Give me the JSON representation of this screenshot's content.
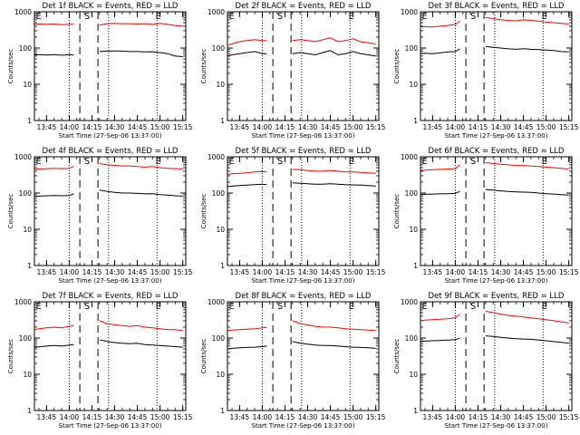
{
  "chart_data": [
    {
      "type": "line",
      "title": "Det 1f BLACK = Events, RED = LLD",
      "xlabel": "Start Time (27-Sep-06 13:37:00)",
      "ylabel": "Counts/sec",
      "yscale": "log",
      "ylim": [
        1,
        1000
      ],
      "x_ticklabels": [
        "13:45",
        "14:00",
        "14:15",
        "14:30",
        "14:45",
        "15:00",
        "15:15"
      ],
      "y_ticklabels": [
        "1",
        "10",
        "100",
        "1000"
      ],
      "markers": [
        "E",
        "S",
        "E"
      ],
      "x": [
        "13:37",
        "13:40",
        "13:45",
        "13:50",
        "13:55",
        "14:00",
        "14:03",
        "14:05",
        "14:10",
        "14:12",
        "14:20",
        "14:25",
        "14:30",
        "14:35",
        "14:40",
        "14:45",
        "14:50",
        "14:55",
        "15:00",
        "15:05",
        "15:10",
        "15:15"
      ],
      "series": [
        {
          "name": "RED = LLD",
          "color": "#ff0000",
          "values": [
            450,
            460,
            450,
            460,
            440,
            450,
            455,
            null,
            null,
            null,
            430,
            470,
            480,
            470,
            470,
            460,
            470,
            450,
            480,
            450,
            420,
            400
          ]
        },
        {
          "name": "BLACK = Events",
          "color": "#000000",
          "values": [
            65,
            66,
            64,
            66,
            63,
            66,
            64,
            null,
            null,
            null,
            80,
            82,
            83,
            82,
            80,
            80,
            78,
            79,
            75,
            70,
            60,
            58
          ]
        }
      ]
    },
    {
      "type": "line",
      "title": "Det 2f BLACK = Events, RED = LLD",
      "xlabel": "Start Time (27-Sep-06 13:37:00)",
      "ylabel": "Counts/sec",
      "yscale": "log",
      "ylim": [
        1,
        1000
      ],
      "x_ticklabels": [
        "13:45",
        "14:00",
        "14:15",
        "14:30",
        "14:45",
        "15:00",
        "15:15"
      ],
      "y_ticklabels": [
        "1",
        "10",
        "100",
        "1000"
      ],
      "markers": [
        "E",
        "S",
        "E"
      ],
      "x": [
        "13:37",
        "13:40",
        "13:45",
        "13:50",
        "13:55",
        "14:00",
        "14:03",
        "14:05",
        "14:10",
        "14:12",
        "14:20",
        "14:25",
        "14:30",
        "14:35",
        "14:40",
        "14:45",
        "14:50",
        "14:55",
        "15:00",
        "15:05",
        "15:10",
        "15:15"
      ],
      "series": [
        {
          "name": "RED = LLD",
          "color": "#ff0000",
          "values": [
            120,
            130,
            150,
            160,
            170,
            160,
            160,
            null,
            null,
            null,
            160,
            170,
            160,
            150,
            170,
            190,
            150,
            160,
            180,
            150,
            140,
            130
          ]
        },
        {
          "name": "BLACK = Events",
          "color": "#000000",
          "values": [
            60,
            65,
            70,
            75,
            80,
            70,
            70,
            null,
            null,
            null,
            70,
            75,
            70,
            65,
            75,
            85,
            65,
            70,
            80,
            70,
            65,
            60
          ]
        }
      ]
    },
    {
      "type": "line",
      "title": "Det 3f BLACK = Events, RED = LLD",
      "xlabel": "Start Time (27-Sep-06 13:37:00)",
      "ylabel": "Counts/sec",
      "yscale": "log",
      "ylim": [
        1,
        1000
      ],
      "x_ticklabels": [
        "13:45",
        "14:00",
        "14:15",
        "14:30",
        "14:45",
        "15:00",
        "15:15"
      ],
      "y_ticklabels": [
        "1",
        "10",
        "100",
        "1000"
      ],
      "markers": [
        "E",
        "S",
        "E"
      ],
      "x": [
        "13:37",
        "13:40",
        "13:45",
        "13:50",
        "13:55",
        "14:00",
        "14:03",
        "14:05",
        "14:10",
        "14:12",
        "14:20",
        "14:25",
        "14:30",
        "14:35",
        "14:40",
        "14:45",
        "14:50",
        "14:55",
        "15:00",
        "15:05",
        "15:10",
        "15:15"
      ],
      "series": [
        {
          "name": "RED = LLD",
          "color": "#ff0000",
          "values": [
            380,
            390,
            380,
            400,
            420,
            450,
            550,
            null,
            null,
            null,
            700,
            650,
            600,
            580,
            560,
            600,
            580,
            550,
            520,
            500,
            480,
            460
          ]
        },
        {
          "name": "BLACK = Events",
          "color": "#000000",
          "values": [
            70,
            72,
            70,
            74,
            78,
            80,
            95,
            null,
            null,
            null,
            110,
            105,
            100,
            95,
            92,
            96,
            92,
            90,
            88,
            85,
            80,
            78
          ]
        }
      ]
    },
    {
      "type": "line",
      "title": "Det 4f BLACK = Events, RED = LLD",
      "xlabel": "Start Time (27-Sep-06 13:37:00)",
      "ylabel": "Counts/sec",
      "yscale": "log",
      "ylim": [
        1,
        1000
      ],
      "x_ticklabels": [
        "13:45",
        "14:00",
        "14:15",
        "14:30",
        "14:45",
        "15:00",
        "15:15"
      ],
      "y_ticklabels": [
        "1",
        "10",
        "100",
        "1000"
      ],
      "markers": [
        "E",
        "S",
        "E"
      ],
      "x": [
        "13:37",
        "13:40",
        "13:45",
        "13:50",
        "13:55",
        "14:00",
        "14:03",
        "14:05",
        "14:10",
        "14:12",
        "14:20",
        "14:25",
        "14:30",
        "14:35",
        "14:40",
        "14:45",
        "14:50",
        "14:55",
        "15:00",
        "15:05",
        "15:10",
        "15:15"
      ],
      "series": [
        {
          "name": "RED = LLD",
          "color": "#ff0000",
          "values": [
            450,
            460,
            470,
            480,
            470,
            480,
            550,
            null,
            null,
            null,
            650,
            600,
            580,
            560,
            560,
            540,
            520,
            540,
            500,
            480,
            470,
            460
          ]
        },
        {
          "name": "BLACK = Events",
          "color": "#000000",
          "values": [
            80,
            82,
            84,
            85,
            84,
            85,
            95,
            null,
            null,
            null,
            120,
            110,
            105,
            100,
            100,
            98,
            95,
            96,
            90,
            88,
            84,
            82
          ]
        }
      ]
    },
    {
      "type": "line",
      "title": "Det 5f BLACK = Events, RED = LLD",
      "xlabel": "Start Time (27-Sep-06 13:37:00)",
      "ylabel": "Counts/sec",
      "yscale": "log",
      "ylim": [
        1,
        1000
      ],
      "x_ticklabels": [
        "13:45",
        "14:00",
        "14:15",
        "14:30",
        "14:45",
        "15:00",
        "15:15"
      ],
      "y_ticklabels": [
        "1",
        "10",
        "100",
        "1000"
      ],
      "markers": [
        "E",
        "S",
        "E"
      ],
      "x": [
        "13:37",
        "13:40",
        "13:45",
        "13:50",
        "13:55",
        "14:00",
        "14:03",
        "14:05",
        "14:10",
        "14:12",
        "14:20",
        "14:25",
        "14:30",
        "14:35",
        "14:40",
        "14:45",
        "14:50",
        "14:55",
        "15:00",
        "15:05",
        "15:10",
        "15:15"
      ],
      "series": [
        {
          "name": "RED = LLD",
          "color": "#ff0000",
          "values": [
            330,
            340,
            350,
            360,
            380,
            390,
            380,
            null,
            null,
            null,
            450,
            440,
            420,
            400,
            400,
            420,
            400,
            380,
            380,
            370,
            360,
            350
          ]
        },
        {
          "name": "BLACK = Events",
          "color": "#000000",
          "values": [
            150,
            155,
            160,
            165,
            170,
            175,
            170,
            null,
            null,
            null,
            190,
            185,
            180,
            175,
            175,
            180,
            175,
            170,
            168,
            165,
            160,
            155
          ]
        }
      ]
    },
    {
      "type": "line",
      "title": "Det 6f BLACK = Events, RED = LLD",
      "xlabel": "Start Time (27-Sep-06 13:37:00)",
      "ylabel": "Counts/sec",
      "yscale": "log",
      "ylim": [
        1,
        1000
      ],
      "x_ticklabels": [
        "13:45",
        "14:00",
        "14:15",
        "14:30",
        "14:45",
        "15:00",
        "15:15"
      ],
      "y_ticklabels": [
        "1",
        "10",
        "100",
        "1000"
      ],
      "markers": [
        "E",
        "S",
        "E"
      ],
      "x": [
        "13:37",
        "13:40",
        "13:45",
        "13:50",
        "13:55",
        "14:00",
        "14:03",
        "14:05",
        "14:10",
        "14:12",
        "14:20",
        "14:25",
        "14:30",
        "14:35",
        "14:40",
        "14:45",
        "14:50",
        "14:55",
        "15:00",
        "15:05",
        "15:10",
        "15:15"
      ],
      "series": [
        {
          "name": "RED = LLD",
          "color": "#ff0000",
          "values": [
            420,
            430,
            440,
            450,
            460,
            470,
            600,
            null,
            null,
            null,
            700,
            650,
            620,
            600,
            580,
            570,
            560,
            540,
            520,
            500,
            480,
            460
          ]
        },
        {
          "name": "BLACK = Events",
          "color": "#000000",
          "values": [
            90,
            92,
            94,
            95,
            96,
            98,
            110,
            null,
            null,
            null,
            125,
            120,
            115,
            110,
            108,
            106,
            104,
            100,
            96,
            94,
            90,
            88
          ]
        }
      ]
    },
    {
      "type": "line",
      "title": "Det 7f BLACK = Events, RED = LLD",
      "xlabel": "Start Time (27-Sep-06 13:37:00)",
      "ylabel": "Counts/sec",
      "yscale": "log",
      "ylim": [
        1,
        1000
      ],
      "x_ticklabels": [
        "13:45",
        "14:00",
        "14:15",
        "14:30",
        "14:45",
        "15:00",
        "15:15"
      ],
      "y_ticklabels": [
        "1",
        "10",
        "100",
        "1000"
      ],
      "markers": [
        "E",
        "S",
        "E"
      ],
      "x": [
        "13:37",
        "13:40",
        "13:45",
        "13:50",
        "13:55",
        "14:00",
        "14:03",
        "14:05",
        "14:10",
        "14:12",
        "14:20",
        "14:25",
        "14:30",
        "14:35",
        "14:40",
        "14:45",
        "14:50",
        "14:55",
        "15:00",
        "15:05",
        "15:10",
        "15:15"
      ],
      "series": [
        {
          "name": "RED = LLD",
          "color": "#ff0000",
          "values": [
            170,
            180,
            190,
            200,
            190,
            210,
            220,
            null,
            null,
            null,
            300,
            250,
            230,
            220,
            210,
            220,
            200,
            190,
            180,
            170,
            170,
            160
          ]
        },
        {
          "name": "BLACK = Events",
          "color": "#000000",
          "values": [
            55,
            57,
            60,
            62,
            60,
            64,
            66,
            null,
            null,
            null,
            90,
            80,
            75,
            72,
            70,
            72,
            66,
            64,
            62,
            60,
            58,
            56
          ]
        }
      ]
    },
    {
      "type": "line",
      "title": "Det 8f BLACK = Events, RED = LLD",
      "xlabel": "Start Time (27-Sep-06 13:37:00)",
      "ylabel": "Counts/sec",
      "yscale": "log",
      "ylim": [
        1,
        1000
      ],
      "x_ticklabels": [
        "13:45",
        "14:00",
        "14:15",
        "14:30",
        "14:45",
        "15:00",
        "15:15"
      ],
      "y_ticklabels": [
        "1",
        "10",
        "100",
        "1000"
      ],
      "markers": [
        "E",
        "S",
        "E"
      ],
      "x": [
        "13:37",
        "13:40",
        "13:45",
        "13:50",
        "13:55",
        "14:00",
        "14:03",
        "14:05",
        "14:10",
        "14:12",
        "14:20",
        "14:25",
        "14:30",
        "14:35",
        "14:40",
        "14:45",
        "14:50",
        "14:55",
        "15:00",
        "15:05",
        "15:10",
        "15:15"
      ],
      "series": [
        {
          "name": "RED = LLD",
          "color": "#ff0000",
          "values": [
            160,
            165,
            170,
            175,
            180,
            190,
            200,
            null,
            null,
            null,
            300,
            250,
            230,
            210,
            200,
            200,
            190,
            180,
            175,
            170,
            165,
            160
          ]
        },
        {
          "name": "BLACK = Events",
          "color": "#000000",
          "values": [
            50,
            52,
            54,
            55,
            56,
            58,
            60,
            null,
            null,
            null,
            80,
            72,
            68,
            64,
            62,
            62,
            60,
            58,
            56,
            55,
            54,
            52
          ]
        }
      ]
    },
    {
      "type": "line",
      "title": "Det 9f BLACK = Events, RED = LLD",
      "xlabel": "Start Time (27-Sep-06 13:37:00)",
      "ylabel": "Counts/sec",
      "yscale": "log",
      "ylim": [
        1,
        1000
      ],
      "x_ticklabels": [
        "13:45",
        "14:00",
        "14:15",
        "14:30",
        "14:45",
        "15:00",
        "15:15"
      ],
      "y_ticklabels": [
        "1",
        "10",
        "100",
        "1000"
      ],
      "markers": [
        "E",
        "S",
        "E"
      ],
      "x": [
        "13:37",
        "13:40",
        "13:45",
        "13:50",
        "13:55",
        "14:00",
        "14:03",
        "14:05",
        "14:10",
        "14:12",
        "14:20",
        "14:25",
        "14:30",
        "14:35",
        "14:40",
        "14:45",
        "14:50",
        "14:55",
        "15:00",
        "15:05",
        "15:10",
        "15:15"
      ],
      "series": [
        {
          "name": "RED = LLD",
          "color": "#ff0000",
          "values": [
            300,
            310,
            320,
            330,
            340,
            360,
            450,
            null,
            null,
            null,
            550,
            500,
            460,
            420,
            400,
            380,
            360,
            340,
            320,
            300,
            280,
            260
          ]
        },
        {
          "name": "BLACK = Events",
          "color": "#000000",
          "values": [
            80,
            82,
            84,
            86,
            88,
            90,
            100,
            null,
            null,
            null,
            115,
            110,
            105,
            100,
            96,
            94,
            92,
            88,
            84,
            80,
            76,
            72
          ]
        }
      ]
    }
  ]
}
